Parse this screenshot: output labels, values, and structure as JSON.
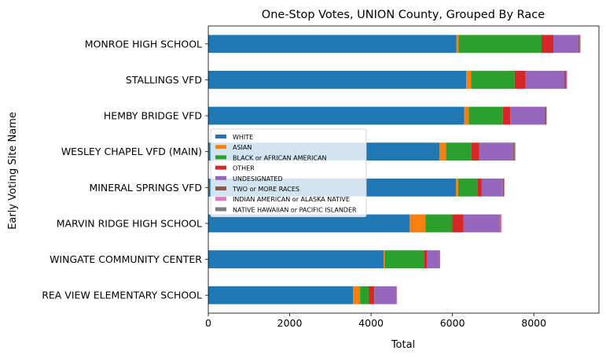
{
  "chart_data": {
    "type": "bar",
    "orientation": "horizontal",
    "stacked": true,
    "title": "One-Stop Votes, UNION County, Grouped By Race",
    "xlabel": "Total",
    "ylabel": "Early Voting Site Name",
    "xlim": [
      0,
      9600
    ],
    "xticks": [
      "0",
      "2000",
      "4000",
      "6000",
      "8000"
    ],
    "legend_position": "center-left",
    "categories": [
      "REA VIEW ELEMENTARY SCHOOL",
      "WINGATE COMMUNITY CENTER",
      "MARVIN RIDGE HIGH SCHOOL",
      "MINERAL SPRINGS VFD",
      "WESLEY CHAPEL VFD (MAIN)",
      "HEMBY BRIDGE VFD",
      "STALLINGS VFD",
      "MONROE HIGH SCHOOL"
    ],
    "series": [
      {
        "name": "WHITE",
        "color": "#1f77b4",
        "values": [
          3560,
          4310,
          4950,
          6090,
          5680,
          6290,
          6340,
          6100
        ]
      },
      {
        "name": "ASIAN",
        "color": "#ff7f0e",
        "values": [
          170,
          20,
          390,
          50,
          160,
          110,
          120,
          50
        ]
      },
      {
        "name": "BLACK or AFRICAN AMERICAN",
        "color": "#2ca02c",
        "values": [
          220,
          970,
          650,
          470,
          630,
          840,
          1070,
          2040
        ]
      },
      {
        "name": "OTHER",
        "color": "#d62728",
        "values": [
          130,
          70,
          280,
          110,
          190,
          180,
          270,
          290
        ]
      },
      {
        "name": "UNDESIGNATED",
        "color": "#9467bd",
        "values": [
          540,
          310,
          890,
          520,
          830,
          850,
          950,
          610
        ]
      },
      {
        "name": "TWO or MORE RACES",
        "color": "#8c564b",
        "values": [
          10,
          10,
          20,
          30,
          40,
          40,
          50,
          40
        ]
      },
      {
        "name": "INDIAN AMERICAN or ALASKA NATIVE",
        "color": "#e377c2",
        "values": [
          10,
          10,
          30,
          10,
          10,
          10,
          20,
          10
        ]
      },
      {
        "name": "NATIVE HAWAIIAN or PACIFIC ISLANDER",
        "color": "#7f7f7f",
        "values": [
          0,
          0,
          0,
          0,
          10,
          0,
          0,
          10
        ]
      }
    ]
  }
}
